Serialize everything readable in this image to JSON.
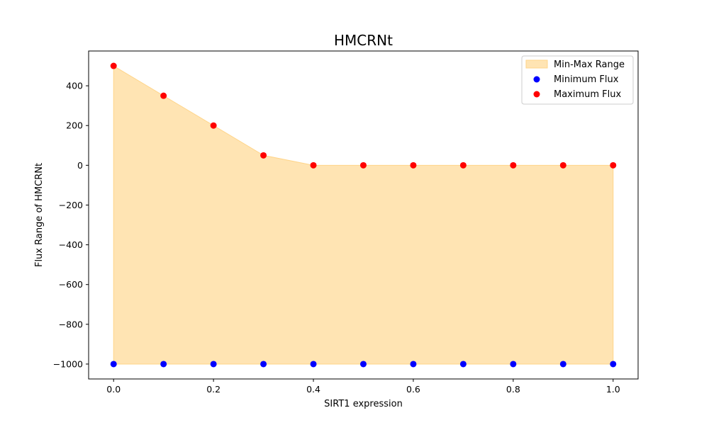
{
  "chart_data": {
    "type": "scatter",
    "title": "HMCRNt",
    "xlabel": "SIRT1 expression",
    "ylabel": "Flux Range of HMCRNt",
    "xlim": [
      -0.05,
      1.05
    ],
    "ylim": [
      -1075,
      575
    ],
    "x_ticks": [
      0.0,
      0.2,
      0.4,
      0.6,
      0.8,
      1.0
    ],
    "x_tick_labels": [
      "0.0",
      "0.2",
      "0.4",
      "0.6",
      "0.8",
      "1.0"
    ],
    "y_ticks": [
      -1000,
      -800,
      -600,
      -400,
      -200,
      0,
      200,
      400
    ],
    "y_tick_labels": [
      "−1000",
      "−800",
      "−600",
      "−400",
      "−200",
      "0",
      "200",
      "400"
    ],
    "x": [
      0.0,
      0.1,
      0.2,
      0.3,
      0.4,
      0.5,
      0.6,
      0.7,
      0.8,
      0.9,
      1.0
    ],
    "series": [
      {
        "name": "Minimum Flux",
        "color": "#0000ff",
        "values": [
          -1000,
          -1000,
          -1000,
          -1000,
          -1000,
          -1000,
          -1000,
          -1000,
          -1000,
          -1000,
          -1000
        ]
      },
      {
        "name": "Maximum Flux",
        "color": "#ff0000",
        "values": [
          500,
          350,
          200,
          50,
          0,
          0,
          0,
          0,
          0,
          0,
          0
        ]
      }
    ],
    "fill": {
      "name": "Min-Max Range",
      "color": "#ffe4b3",
      "edge_color": "#ffd58a"
    },
    "legend_position": "top-right",
    "grid": false
  }
}
